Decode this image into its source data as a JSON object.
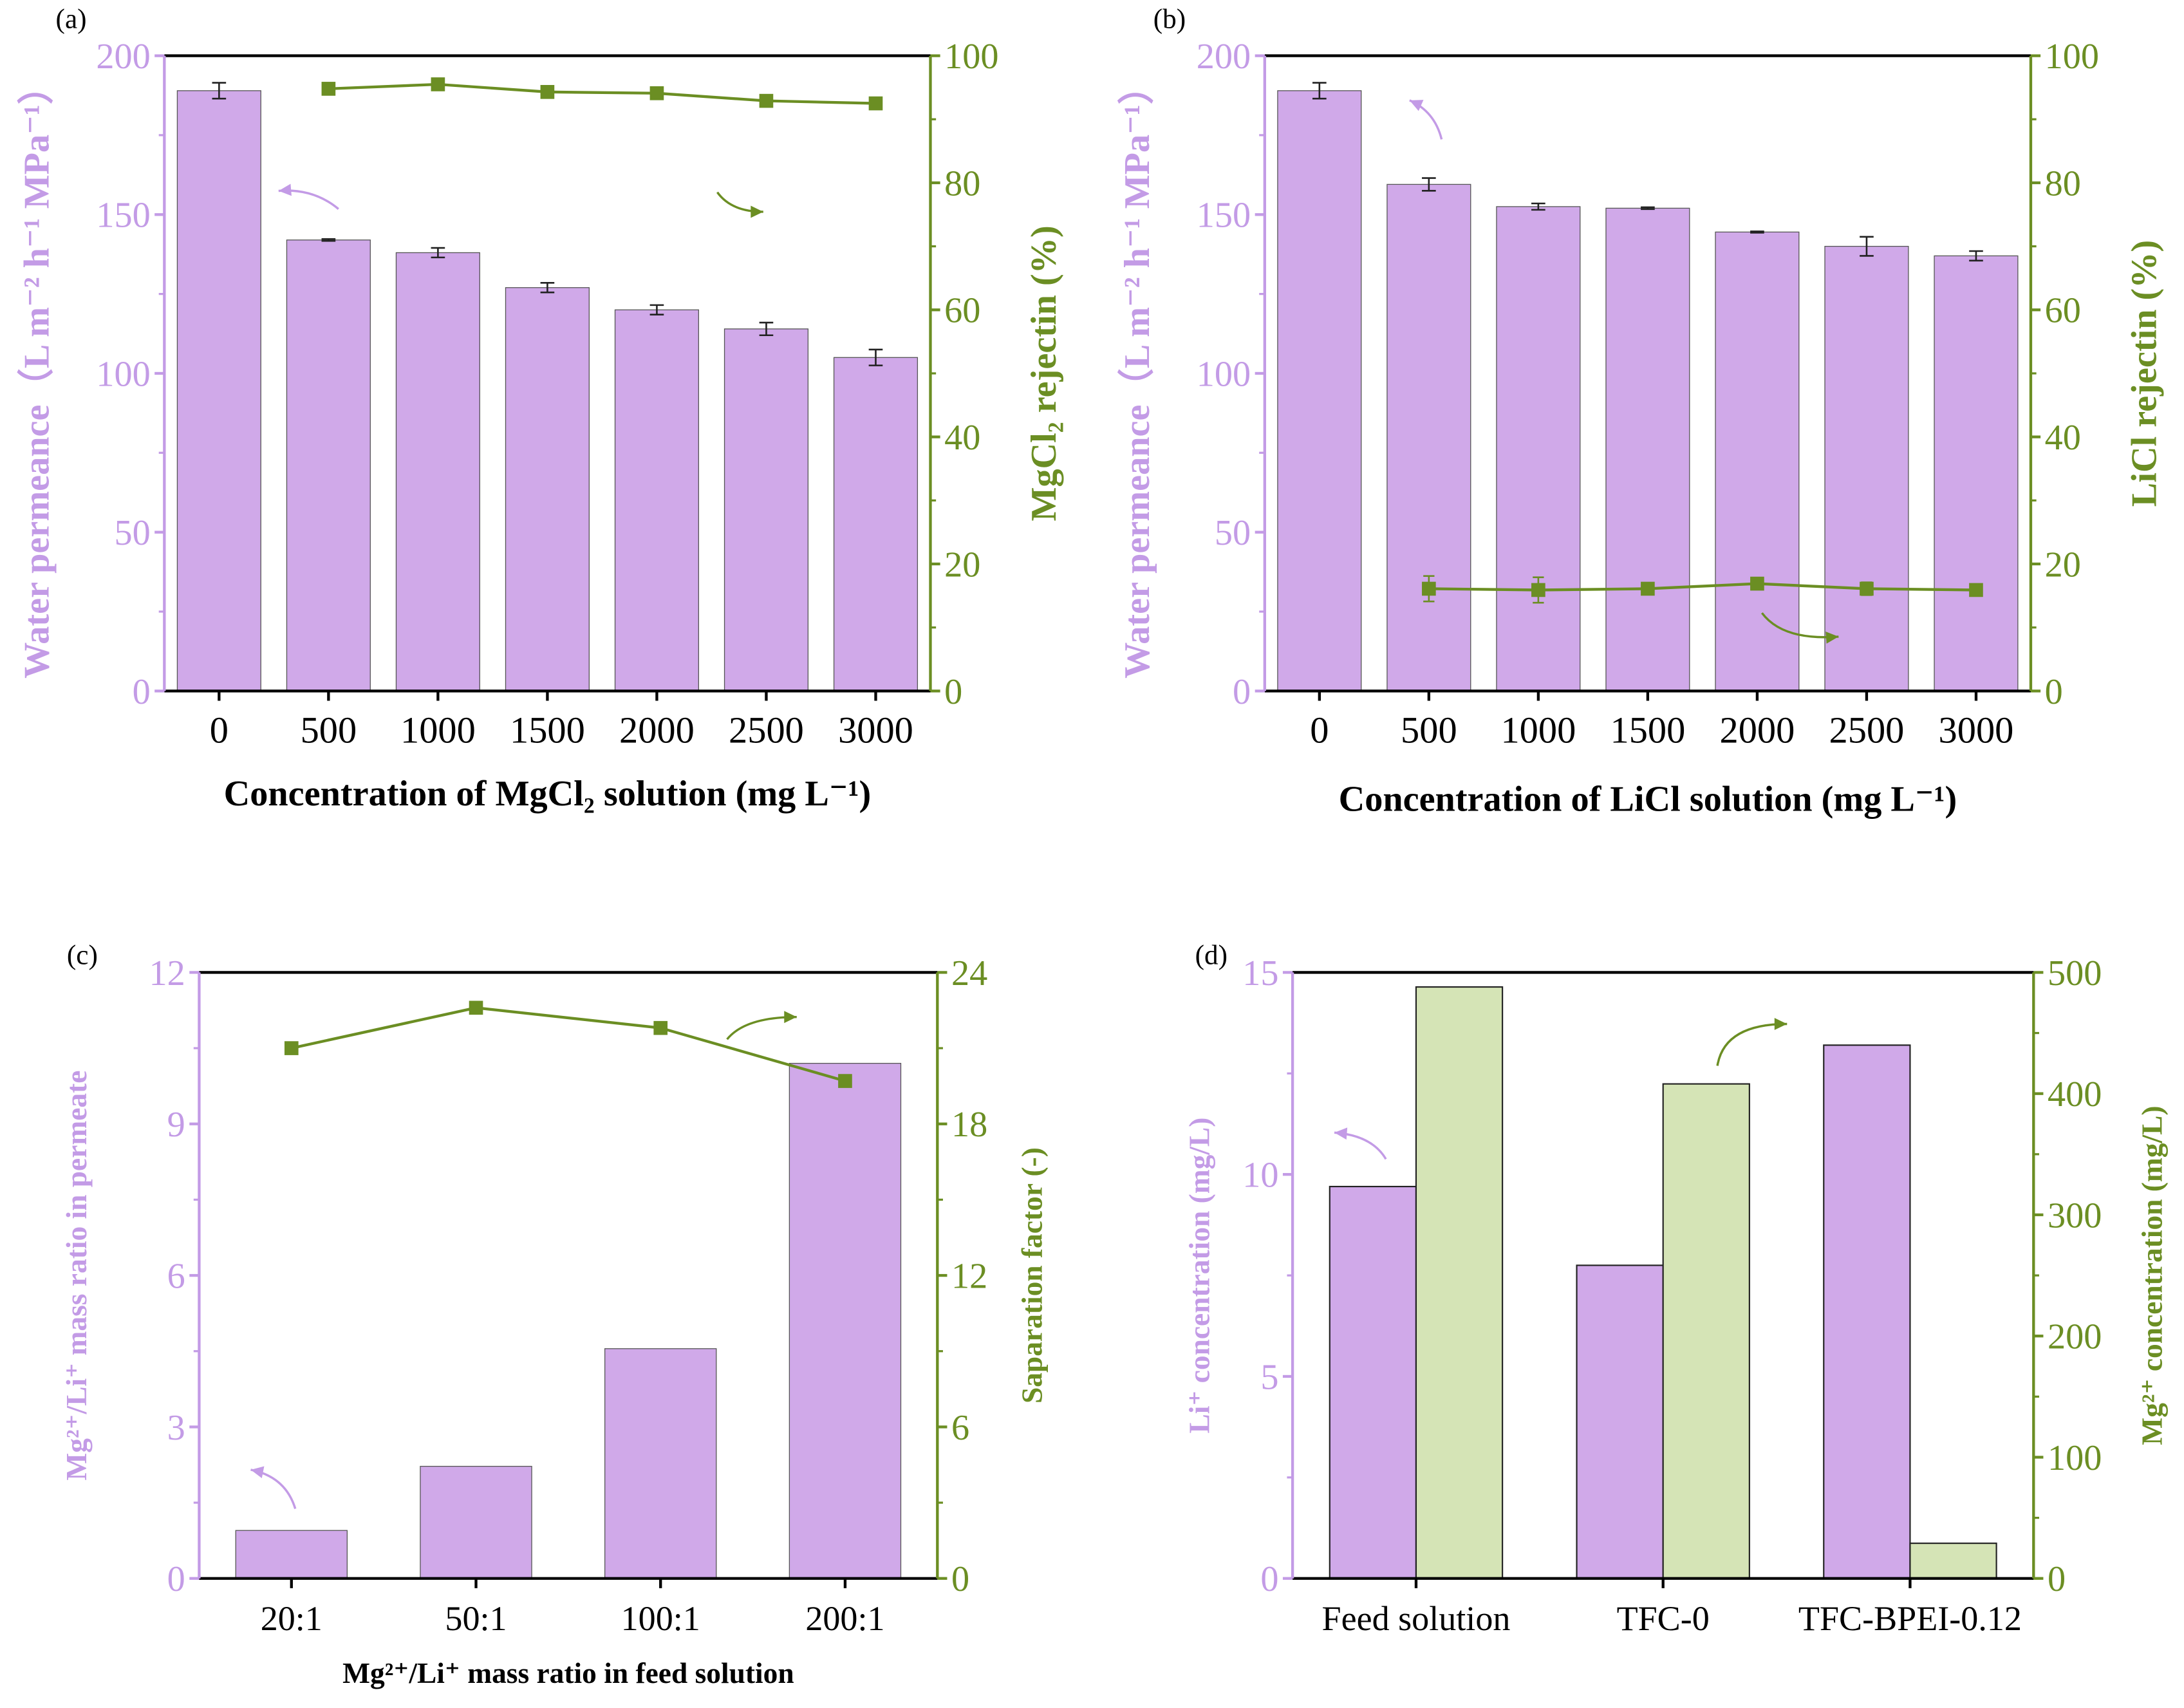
{
  "colors": {
    "purple_bar": "#D0A9E9",
    "purple_axis": "#C39BE6",
    "green": "#6B8E23",
    "green_bar": "#D5E4B6"
  },
  "chart_data": [
    {
      "panel_label": "(a)",
      "type": "bar+line",
      "categories": [
        "0",
        "500",
        "1000",
        "1500",
        "2000",
        "2500",
        "3000"
      ],
      "xlabel": "Concentration of MgCl₂ solution (mg L⁻¹)",
      "ylabel": "Water permeance（L m⁻² h⁻¹ MPa⁻¹）",
      "y2label": "MgCl₂ rejectin (%)",
      "ylim": [
        0,
        200
      ],
      "yticks": [
        0,
        50,
        100,
        150,
        200
      ],
      "y2lim": [
        0,
        100
      ],
      "y2ticks": [
        0,
        20,
        40,
        60,
        80,
        100
      ],
      "bars": {
        "values": [
          189,
          142,
          138,
          127,
          120,
          114,
          105
        ],
        "errors": [
          2.5,
          0.3,
          1.5,
          1.5,
          1.5,
          2,
          2.5
        ]
      },
      "line": {
        "x_index": [
          1,
          2,
          3,
          4,
          5,
          6
        ],
        "values": [
          94.8,
          95.5,
          94.3,
          94.1,
          92.9,
          92.5
        ],
        "errors": [
          0,
          0,
          0,
          0,
          0,
          0
        ]
      }
    },
    {
      "panel_label": "(b)",
      "type": "bar+line",
      "categories": [
        "0",
        "500",
        "1000",
        "1500",
        "2000",
        "2500",
        "3000"
      ],
      "xlabel": "Concentration of LiCl solution (mg L⁻¹)",
      "ylabel": "Water permeance（L m⁻² h⁻¹ MPa⁻¹）",
      "y2label": "LiCl rejectin (%)",
      "ylim": [
        0,
        200
      ],
      "yticks": [
        0,
        50,
        100,
        150,
        200
      ],
      "y2lim": [
        0,
        100
      ],
      "y2ticks": [
        0,
        20,
        40,
        60,
        80,
        100
      ],
      "bars": {
        "values": [
          189,
          159.5,
          152.5,
          152,
          144.5,
          140,
          137
        ],
        "errors": [
          2.5,
          2,
          1,
          0.3,
          0.2,
          3,
          1.5
        ]
      },
      "line": {
        "x_index": [
          1,
          2,
          3,
          4,
          5,
          6
        ],
        "values": [
          16.1,
          15.9,
          16.1,
          16.9,
          16.1,
          15.9
        ],
        "errors": [
          2,
          2,
          0.5,
          0.5,
          1,
          0.5
        ]
      }
    },
    {
      "panel_label": "(c)",
      "type": "bar+line",
      "categories": [
        "20:1",
        "50:1",
        "100:1",
        "200:1"
      ],
      "xlabel": "Mg²⁺/Li⁺ mass ratio in feed solution",
      "ylabel": "Mg²⁺/Li⁺ mass ratio in permeate",
      "y2label": "Saparation factor (-)",
      "ylim": [
        0,
        12
      ],
      "yticks": [
        0,
        3,
        6,
        9,
        12
      ],
      "y2lim": [
        0,
        24
      ],
      "y2ticks": [
        0,
        6,
        12,
        18,
        24
      ],
      "bars": {
        "values": [
          0.95,
          2.22,
          4.55,
          10.2
        ],
        "errors": [
          0,
          0,
          0,
          0
        ]
      },
      "line": {
        "x_index": [
          0,
          1,
          2,
          3
        ],
        "values": [
          21.0,
          22.6,
          21.8,
          19.7
        ],
        "errors": [
          0,
          0,
          0,
          0
        ]
      }
    },
    {
      "panel_label": "(d)",
      "type": "grouped-bar",
      "categories": [
        "Feed solution",
        "TFC-0",
        "TFC-BPEI-0.12"
      ],
      "ylabel": "Li⁺ concentration (mg/L)",
      "y2label": "Mg²⁺ concentration (mg/L)",
      "ylim": [
        0,
        15
      ],
      "yticks": [
        0,
        5,
        10,
        15
      ],
      "y2lim": [
        0,
        500
      ],
      "y2ticks": [
        0,
        100,
        200,
        300,
        400,
        500
      ],
      "series": [
        {
          "name": "Li⁺",
          "axis": "left",
          "values": [
            9.7,
            7.75,
            13.2
          ]
        },
        {
          "name": "Mg²⁺",
          "axis": "right",
          "values": [
            488,
            408,
            29
          ]
        }
      ]
    }
  ]
}
